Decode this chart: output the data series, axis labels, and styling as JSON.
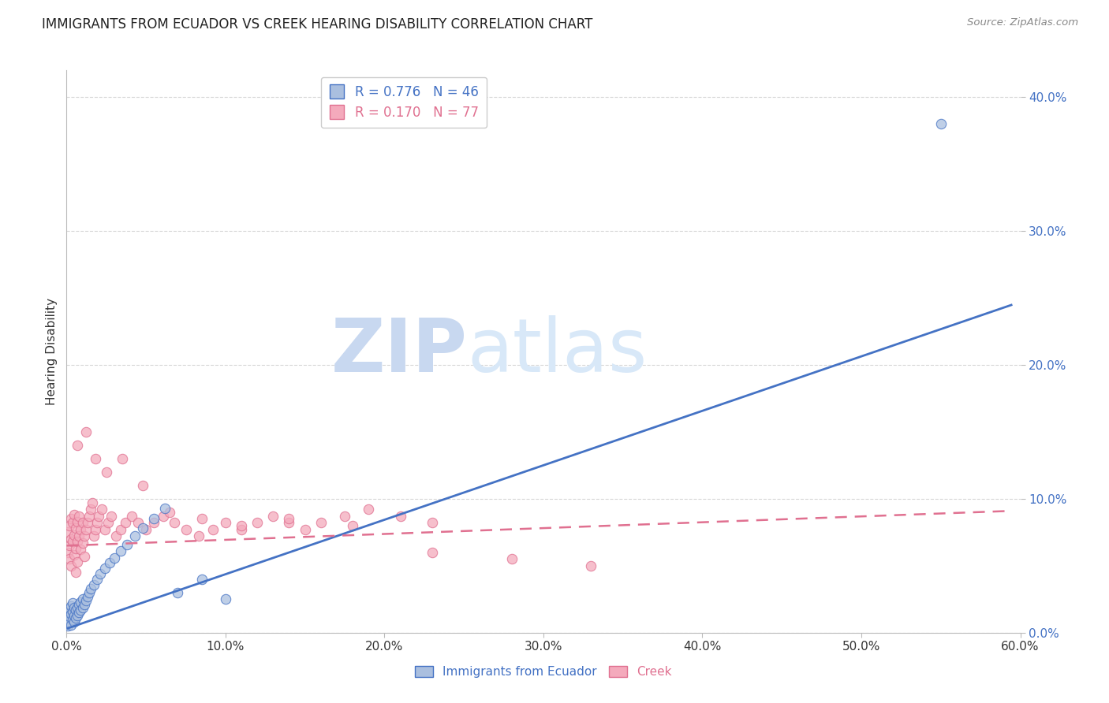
{
  "title": "IMMIGRANTS FROM ECUADOR VS CREEK HEARING DISABILITY CORRELATION CHART",
  "source": "Source: ZipAtlas.com",
  "xlabel_blue": "Immigrants from Ecuador",
  "xlabel_pink": "Creek",
  "ylabel": "Hearing Disability",
  "xlim": [
    0.0,
    0.6
  ],
  "ylim": [
    0.0,
    0.42
  ],
  "xticks": [
    0.0,
    0.1,
    0.2,
    0.3,
    0.4,
    0.5,
    0.6
  ],
  "yticks": [
    0.0,
    0.1,
    0.2,
    0.3,
    0.4
  ],
  "blue_fill_color": "#AABFDF",
  "blue_edge_color": "#4472C4",
  "pink_fill_color": "#F4AABC",
  "pink_edge_color": "#E07090",
  "blue_line_color": "#4472C4",
  "pink_line_color": "#E07090",
  "legend_R_blue": "R = 0.776",
  "legend_N_blue": "N = 46",
  "legend_R_pink": "R = 0.170",
  "legend_N_pink": "N = 77",
  "blue_scatter_x": [
    0.001,
    0.001,
    0.001,
    0.002,
    0.002,
    0.002,
    0.003,
    0.003,
    0.003,
    0.004,
    0.004,
    0.004,
    0.005,
    0.005,
    0.005,
    0.006,
    0.006,
    0.007,
    0.007,
    0.008,
    0.008,
    0.009,
    0.009,
    0.01,
    0.01,
    0.011,
    0.012,
    0.013,
    0.014,
    0.015,
    0.017,
    0.019,
    0.021,
    0.024,
    0.027,
    0.03,
    0.034,
    0.038,
    0.043,
    0.048,
    0.055,
    0.062,
    0.07,
    0.085,
    0.1,
    0.55
  ],
  "blue_scatter_y": [
    0.005,
    0.01,
    0.015,
    0.008,
    0.012,
    0.018,
    0.006,
    0.014,
    0.02,
    0.01,
    0.016,
    0.022,
    0.008,
    0.013,
    0.019,
    0.011,
    0.017,
    0.013,
    0.019,
    0.015,
    0.021,
    0.017,
    0.023,
    0.019,
    0.025,
    0.021,
    0.024,
    0.027,
    0.03,
    0.033,
    0.036,
    0.04,
    0.044,
    0.048,
    0.052,
    0.056,
    0.061,
    0.066,
    0.072,
    0.078,
    0.085,
    0.093,
    0.03,
    0.04,
    0.025,
    0.38
  ],
  "pink_scatter_x": [
    0.001,
    0.001,
    0.002,
    0.002,
    0.002,
    0.003,
    0.003,
    0.003,
    0.004,
    0.004,
    0.005,
    0.005,
    0.005,
    0.006,
    0.006,
    0.006,
    0.007,
    0.007,
    0.007,
    0.008,
    0.008,
    0.009,
    0.009,
    0.01,
    0.01,
    0.011,
    0.011,
    0.012,
    0.013,
    0.014,
    0.015,
    0.016,
    0.017,
    0.018,
    0.019,
    0.02,
    0.022,
    0.024,
    0.026,
    0.028,
    0.031,
    0.034,
    0.037,
    0.041,
    0.045,
    0.05,
    0.055,
    0.061,
    0.068,
    0.075,
    0.083,
    0.092,
    0.1,
    0.11,
    0.12,
    0.13,
    0.14,
    0.15,
    0.16,
    0.175,
    0.19,
    0.21,
    0.23,
    0.007,
    0.012,
    0.018,
    0.025,
    0.035,
    0.048,
    0.065,
    0.085,
    0.11,
    0.14,
    0.18,
    0.23,
    0.28,
    0.33
  ],
  "pink_scatter_y": [
    0.06,
    0.075,
    0.065,
    0.08,
    0.055,
    0.07,
    0.085,
    0.05,
    0.068,
    0.082,
    0.058,
    0.073,
    0.088,
    0.063,
    0.078,
    0.045,
    0.068,
    0.083,
    0.053,
    0.072,
    0.087,
    0.062,
    0.077,
    0.067,
    0.082,
    0.057,
    0.072,
    0.077,
    0.082,
    0.087,
    0.092,
    0.097,
    0.072,
    0.077,
    0.082,
    0.087,
    0.092,
    0.077,
    0.082,
    0.087,
    0.072,
    0.077,
    0.082,
    0.087,
    0.082,
    0.077,
    0.082,
    0.087,
    0.082,
    0.077,
    0.072,
    0.077,
    0.082,
    0.077,
    0.082,
    0.087,
    0.082,
    0.077,
    0.082,
    0.087,
    0.092,
    0.087,
    0.082,
    0.14,
    0.15,
    0.13,
    0.12,
    0.13,
    0.11,
    0.09,
    0.085,
    0.08,
    0.085,
    0.08,
    0.06,
    0.055,
    0.05
  ],
  "blue_line_x": [
    0.0,
    0.595
  ],
  "blue_line_y": [
    0.003,
    0.245
  ],
  "pink_line_x": [
    0.0,
    0.595
  ],
  "pink_line_y": [
    0.065,
    0.091
  ],
  "watermark_zip": "ZIP",
  "watermark_atlas": "atlas",
  "background_color": "#FFFFFF",
  "grid_color": "#CCCCCC",
  "title_fontsize": 12,
  "tick_label_color_y": "#4472C4",
  "tick_label_color_x": "#333333",
  "title_color": "#222222",
  "ylabel_color": "#333333"
}
